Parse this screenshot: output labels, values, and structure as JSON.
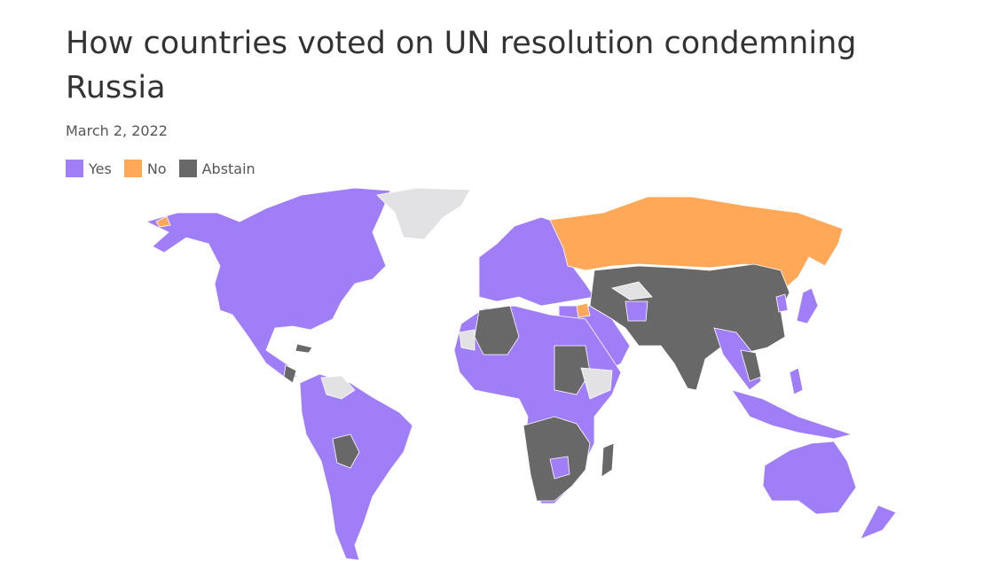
{
  "title": "How countries voted on UN resolution condemning Russia",
  "subtitle": "March 2, 2022",
  "legend": [
    {
      "label": "Yes",
      "color": "#a07ef8"
    },
    {
      "label": "No",
      "color": "#ffa858"
    },
    {
      "label": "Abstain",
      "color": "#686868"
    }
  ],
  "no_vote_color": "#e2e2e4"
}
